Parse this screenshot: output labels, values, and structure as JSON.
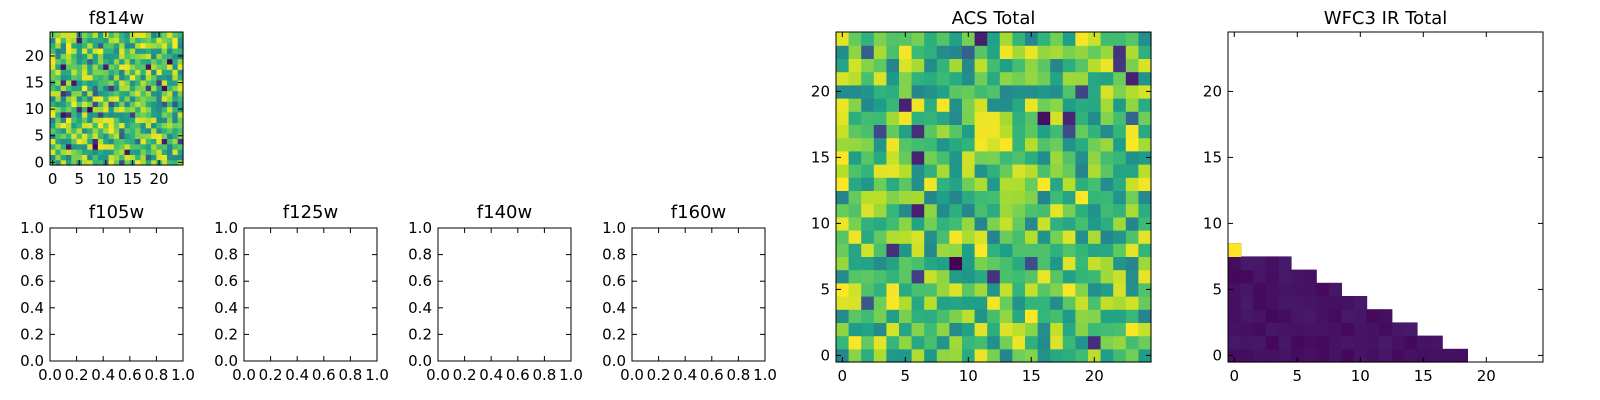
{
  "chart_data": [
    {
      "type": "heatmap",
      "title": "f814w",
      "xticks": [
        0,
        5,
        10,
        15,
        20
      ],
      "yticks": [
        0,
        5,
        10,
        15,
        20
      ],
      "xlim": [
        -0.5,
        24.5
      ],
      "ylim": [
        -0.5,
        24.5
      ],
      "grid_size": 25,
      "colormap": "viridis",
      "pattern": "random"
    },
    {
      "type": "empty",
      "title": "f105w",
      "xticks": [
        "0.0",
        "0.2",
        "0.4",
        "0.6",
        "0.8",
        "1.0"
      ],
      "yticks": [
        "0.0",
        "0.2",
        "0.4",
        "0.6",
        "0.8",
        "1.0"
      ],
      "xlim": [
        0,
        1
      ],
      "ylim": [
        0,
        1
      ]
    },
    {
      "type": "empty",
      "title": "f125w",
      "xticks": [
        "0.0",
        "0.2",
        "0.4",
        "0.6",
        "0.8",
        "1.0"
      ],
      "yticks": [
        "0.0",
        "0.2",
        "0.4",
        "0.6",
        "0.8",
        "1.0"
      ],
      "xlim": [
        0,
        1
      ],
      "ylim": [
        0,
        1
      ]
    },
    {
      "type": "empty",
      "title": "f140w",
      "xticks": [
        "0.0",
        "0.2",
        "0.4",
        "0.6",
        "0.8",
        "1.0"
      ],
      "yticks": [
        "0.0",
        "0.2",
        "0.4",
        "0.6",
        "0.8",
        "1.0"
      ],
      "xlim": [
        0,
        1
      ],
      "ylim": [
        0,
        1
      ]
    },
    {
      "type": "empty",
      "title": "f160w",
      "xticks": [
        "0.0",
        "0.2",
        "0.4",
        "0.6",
        "0.8",
        "1.0"
      ],
      "yticks": [
        "0.0",
        "0.2",
        "0.4",
        "0.6",
        "0.8",
        "1.0"
      ],
      "xlim": [
        0,
        1
      ],
      "ylim": [
        0,
        1
      ]
    },
    {
      "type": "heatmap",
      "title": "ACS Total",
      "xticks": [
        0,
        5,
        10,
        15,
        20
      ],
      "yticks": [
        0,
        5,
        10,
        15,
        20
      ],
      "xlim": [
        -0.5,
        24.5
      ],
      "ylim": [
        -0.5,
        24.5
      ],
      "grid_size": 25,
      "colormap": "viridis",
      "pattern": "random"
    },
    {
      "type": "heatmap",
      "title": "WFC3 IR Total",
      "xticks": [
        0,
        5,
        10,
        15,
        20
      ],
      "yticks": [
        0,
        5,
        10,
        15,
        20
      ],
      "xlim": [
        -0.5,
        24.5
      ],
      "ylim": [
        -0.5,
        24.5
      ],
      "grid_size": 25,
      "colormap": "viridis",
      "pattern": "triangle",
      "row_extents": [
        19,
        17,
        15,
        13,
        11,
        9,
        7,
        5,
        1
      ],
      "bright_cell": {
        "x": 0,
        "y": 8,
        "value": 1.0
      }
    }
  ]
}
